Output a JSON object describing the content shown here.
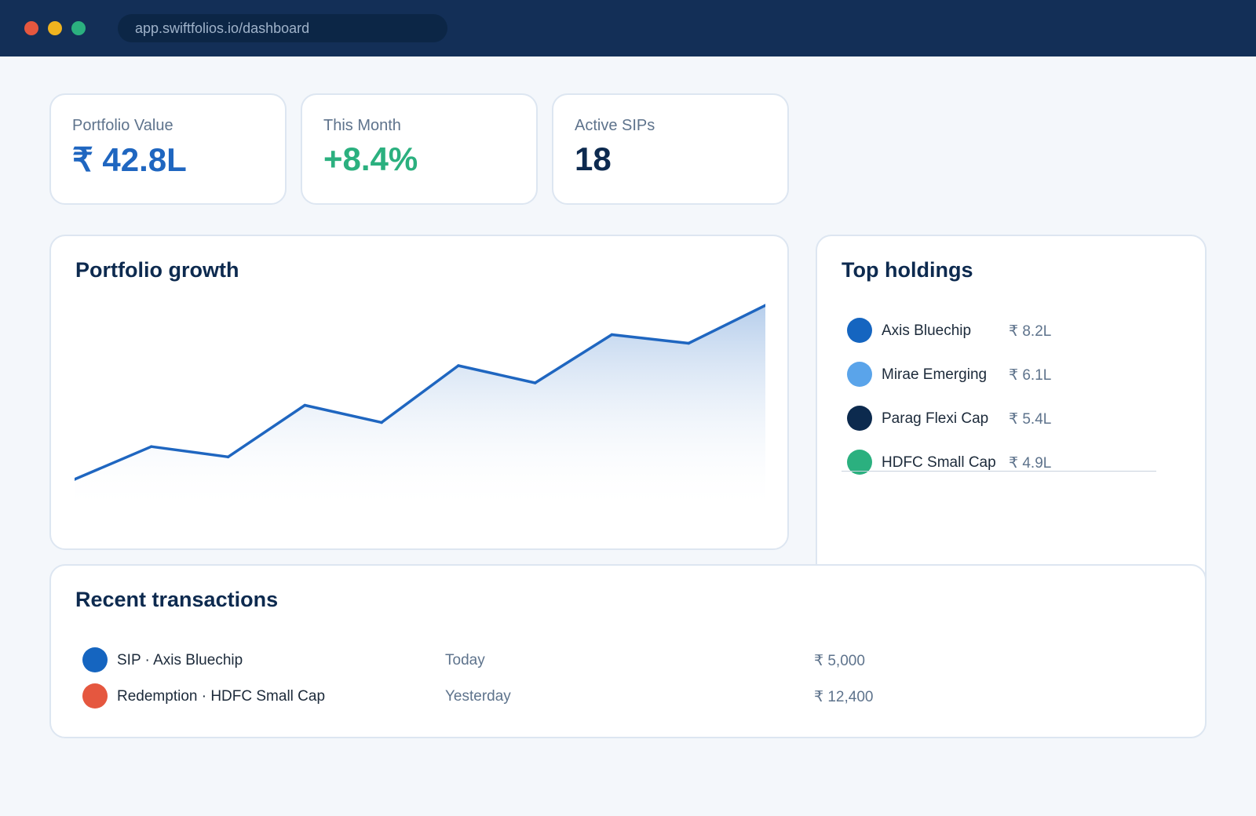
{
  "browser": {
    "url": "app.swiftfolios.io/dashboard"
  },
  "stats": [
    {
      "label": "Portfolio Value",
      "value": "₹ 42.8L",
      "color": "#1f66c0"
    },
    {
      "label": "This Month",
      "value": "+8.4%",
      "color": "#2bb07f"
    },
    {
      "label": "Active SIPs",
      "value": "18",
      "color": "#0d2a4f"
    }
  ],
  "growth": {
    "title": "Portfolio growth"
  },
  "chart_data": {
    "type": "area",
    "title": "Portfolio growth",
    "x": [
      1,
      2,
      3,
      4,
      5,
      6,
      7,
      8,
      9,
      10
    ],
    "values": [
      3,
      22,
      16,
      46,
      36,
      69,
      59,
      87,
      82,
      104
    ],
    "ylim": [
      -13,
      110
    ],
    "grid": false,
    "line_color": "#1f66c0",
    "fill_color": "#a9c5e8"
  },
  "holdings": {
    "title": "Top holdings",
    "items": [
      {
        "name": "Axis Bluechip",
        "value": "₹ 8.2L",
        "color": "#1565c0"
      },
      {
        "name": "Mirae Emerging",
        "value": "₹ 6.1L",
        "color": "#5aa4ea"
      },
      {
        "name": "Parag Flexi Cap",
        "value": "₹ 5.4L",
        "color": "#0c2a4e"
      },
      {
        "name": "HDFC Small Cap",
        "value": "₹ 4.9L",
        "color": "#2bb07f"
      }
    ]
  },
  "transactions": {
    "title": "Recent transactions",
    "rows": [
      {
        "label": "SIP · Axis Bluechip",
        "date": "Today",
        "amount": "₹ 5,000",
        "color": "#1565c0"
      },
      {
        "label": "Redemption · HDFC Small Cap",
        "date": "Yesterday",
        "amount": "₹ 12,400",
        "color": "#e5573f"
      }
    ]
  }
}
